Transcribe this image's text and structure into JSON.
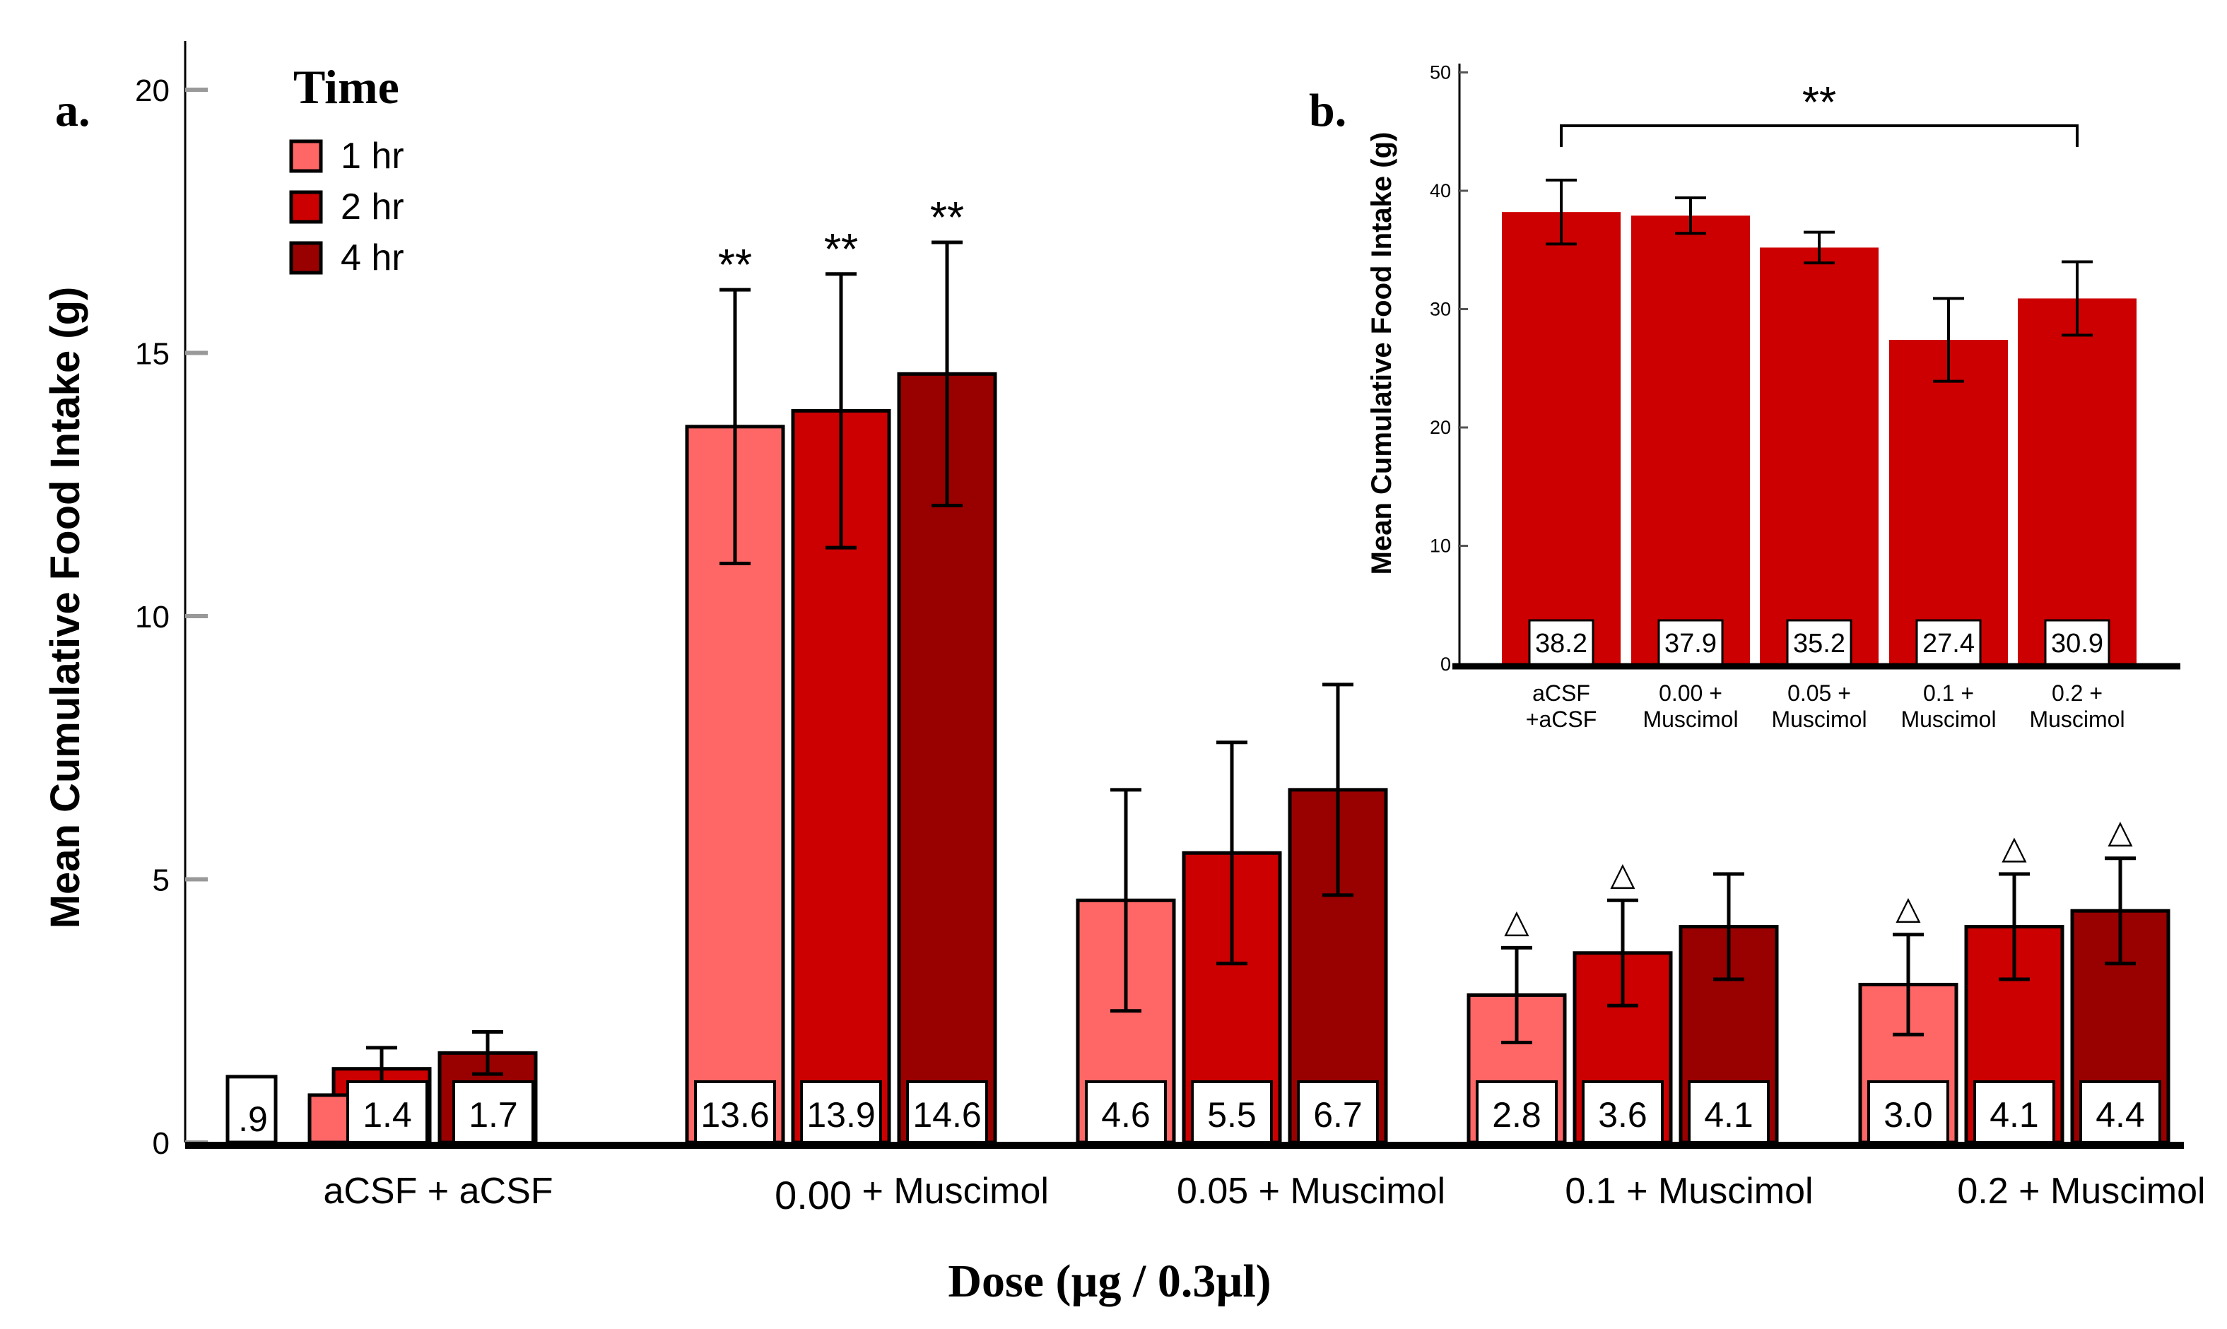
{
  "colors": {
    "hr1": "#ff6666",
    "hr2": "#cc0000",
    "hr4": "#990000",
    "inset": "#cc0000"
  },
  "chart_data": [
    {
      "panel": "a.",
      "type": "bar",
      "ylabel": "Mean Cumulative Food Intake (g)",
      "xlabel": "Dose (µg / 0.3µl)",
      "ylim": [
        0,
        21
      ],
      "yticks": [
        "0",
        "5",
        "10",
        "15",
        "20"
      ],
      "legend_title": "Time",
      "legend_position": "top-left",
      "categories": [
        [
          "",
          "aCSF + aCSF"
        ],
        [
          "0.00",
          " + Muscimol"
        ],
        [
          "",
          "0.05 + Muscimol"
        ],
        [
          "",
          "0.1 + Muscimol"
        ],
        [
          "",
          "0.2 + Muscimol"
        ]
      ],
      "series": [
        {
          "name": "1 hr",
          "values": [
            0.9,
            13.6,
            4.6,
            2.8,
            3.0
          ],
          "errors": [
            0.3,
            2.6,
            2.1,
            0.9,
            0.95
          ],
          "value_labels": [
            ".9",
            "13.6",
            "4.6",
            "2.8",
            "3.0"
          ],
          "markers": [
            "",
            "**",
            "",
            "△",
            "△"
          ]
        },
        {
          "name": "2 hr",
          "values": [
            1.4,
            13.9,
            5.5,
            3.6,
            4.1
          ],
          "errors": [
            0.4,
            2.6,
            2.1,
            1.0,
            1.0
          ],
          "value_labels": [
            "1.4",
            "13.9",
            "5.5",
            "3.6",
            "4.1"
          ],
          "markers": [
            "",
            "**",
            "",
            "△",
            "△"
          ]
        },
        {
          "name": "4 hr",
          "values": [
            1.7,
            14.6,
            6.7,
            4.1,
            4.4
          ],
          "errors": [
            0.4,
            2.5,
            2.0,
            1.0,
            1.0
          ],
          "value_labels": [
            "1.7",
            "14.6",
            "6.7",
            "4.1",
            "4.4"
          ],
          "markers": [
            "",
            "**",
            "",
            "",
            "△"
          ]
        }
      ]
    },
    {
      "panel": "b.",
      "type": "bar",
      "ylabel": "Mean Cumulative Food Intake (g)",
      "ylim": [
        0,
        50
      ],
      "yticks": [
        "0",
        "10",
        "20",
        "30",
        "40",
        "50"
      ],
      "categories": [
        [
          "aCSF",
          "+aCSF"
        ],
        [
          "0.00 +",
          "Muscimol"
        ],
        [
          "0.05 +",
          "Muscimol"
        ],
        [
          "0.1 +",
          "Muscimol"
        ],
        [
          "0.2 +",
          "Muscimol"
        ]
      ],
      "values": [
        38.2,
        37.9,
        35.2,
        27.4,
        30.9
      ],
      "errors": [
        2.7,
        1.5,
        1.3,
        3.5,
        3.1
      ],
      "value_labels": [
        "38.2",
        "37.9",
        "35.2",
        "27.4",
        "30.9"
      ],
      "significance": {
        "from": 0,
        "to": 4,
        "label": "**"
      }
    }
  ]
}
